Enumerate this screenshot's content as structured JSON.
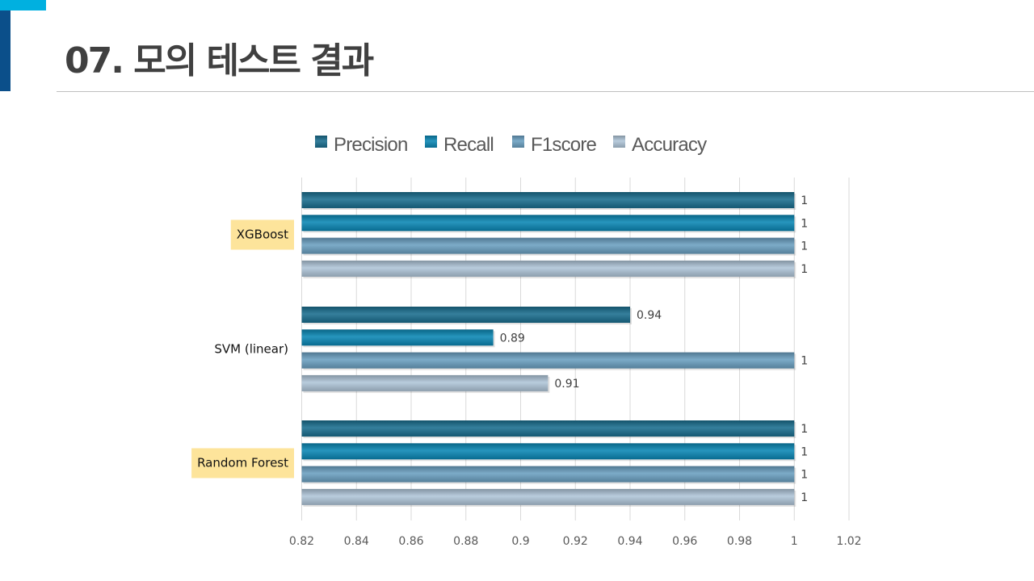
{
  "slide": {
    "title": "07. 모의 테스트 결과",
    "accent_colors": {
      "cyan": "#00b0e0",
      "navy": "#0b4f8a"
    }
  },
  "chart_data": {
    "type": "bar",
    "orientation": "horizontal",
    "categories": [
      "XGBoost",
      "SVM (linear)",
      "Random Forest"
    ],
    "category_highlight": {
      "XGBoost": "#fde49b",
      "SVM (linear)": null,
      "Random Forest": "#fde49b"
    },
    "series": [
      {
        "name": "Precision",
        "color": "#1a6e8e",
        "values": [
          1,
          0.94,
          1
        ],
        "labels": [
          "1",
          "0.94",
          "1"
        ]
      },
      {
        "name": "Recall",
        "color": "#0a86b4",
        "values": [
          1,
          0.89,
          1
        ],
        "labels": [
          "1",
          "0.89",
          "1"
        ]
      },
      {
        "name": "F1score",
        "color": "#6a9fc1",
        "values": [
          1,
          1,
          1
        ],
        "labels": [
          "1",
          "1",
          "1"
        ]
      },
      {
        "name": "Accuracy",
        "color": "#afc5d8",
        "values": [
          1,
          0.91,
          1
        ],
        "labels": [
          "1",
          "0.91",
          "1"
        ]
      }
    ],
    "xlim": [
      0.82,
      1.02
    ],
    "xticks": [
      0.82,
      0.84,
      0.86,
      0.88,
      0.9,
      0.92,
      0.94,
      0.96,
      0.98,
      1,
      1.02
    ],
    "xtick_labels": [
      "0.82",
      "0.84",
      "0.86",
      "0.88",
      "0.9",
      "0.92",
      "0.94",
      "0.96",
      "0.98",
      "1",
      "1.02"
    ],
    "grid": true,
    "legend_position": "top"
  }
}
